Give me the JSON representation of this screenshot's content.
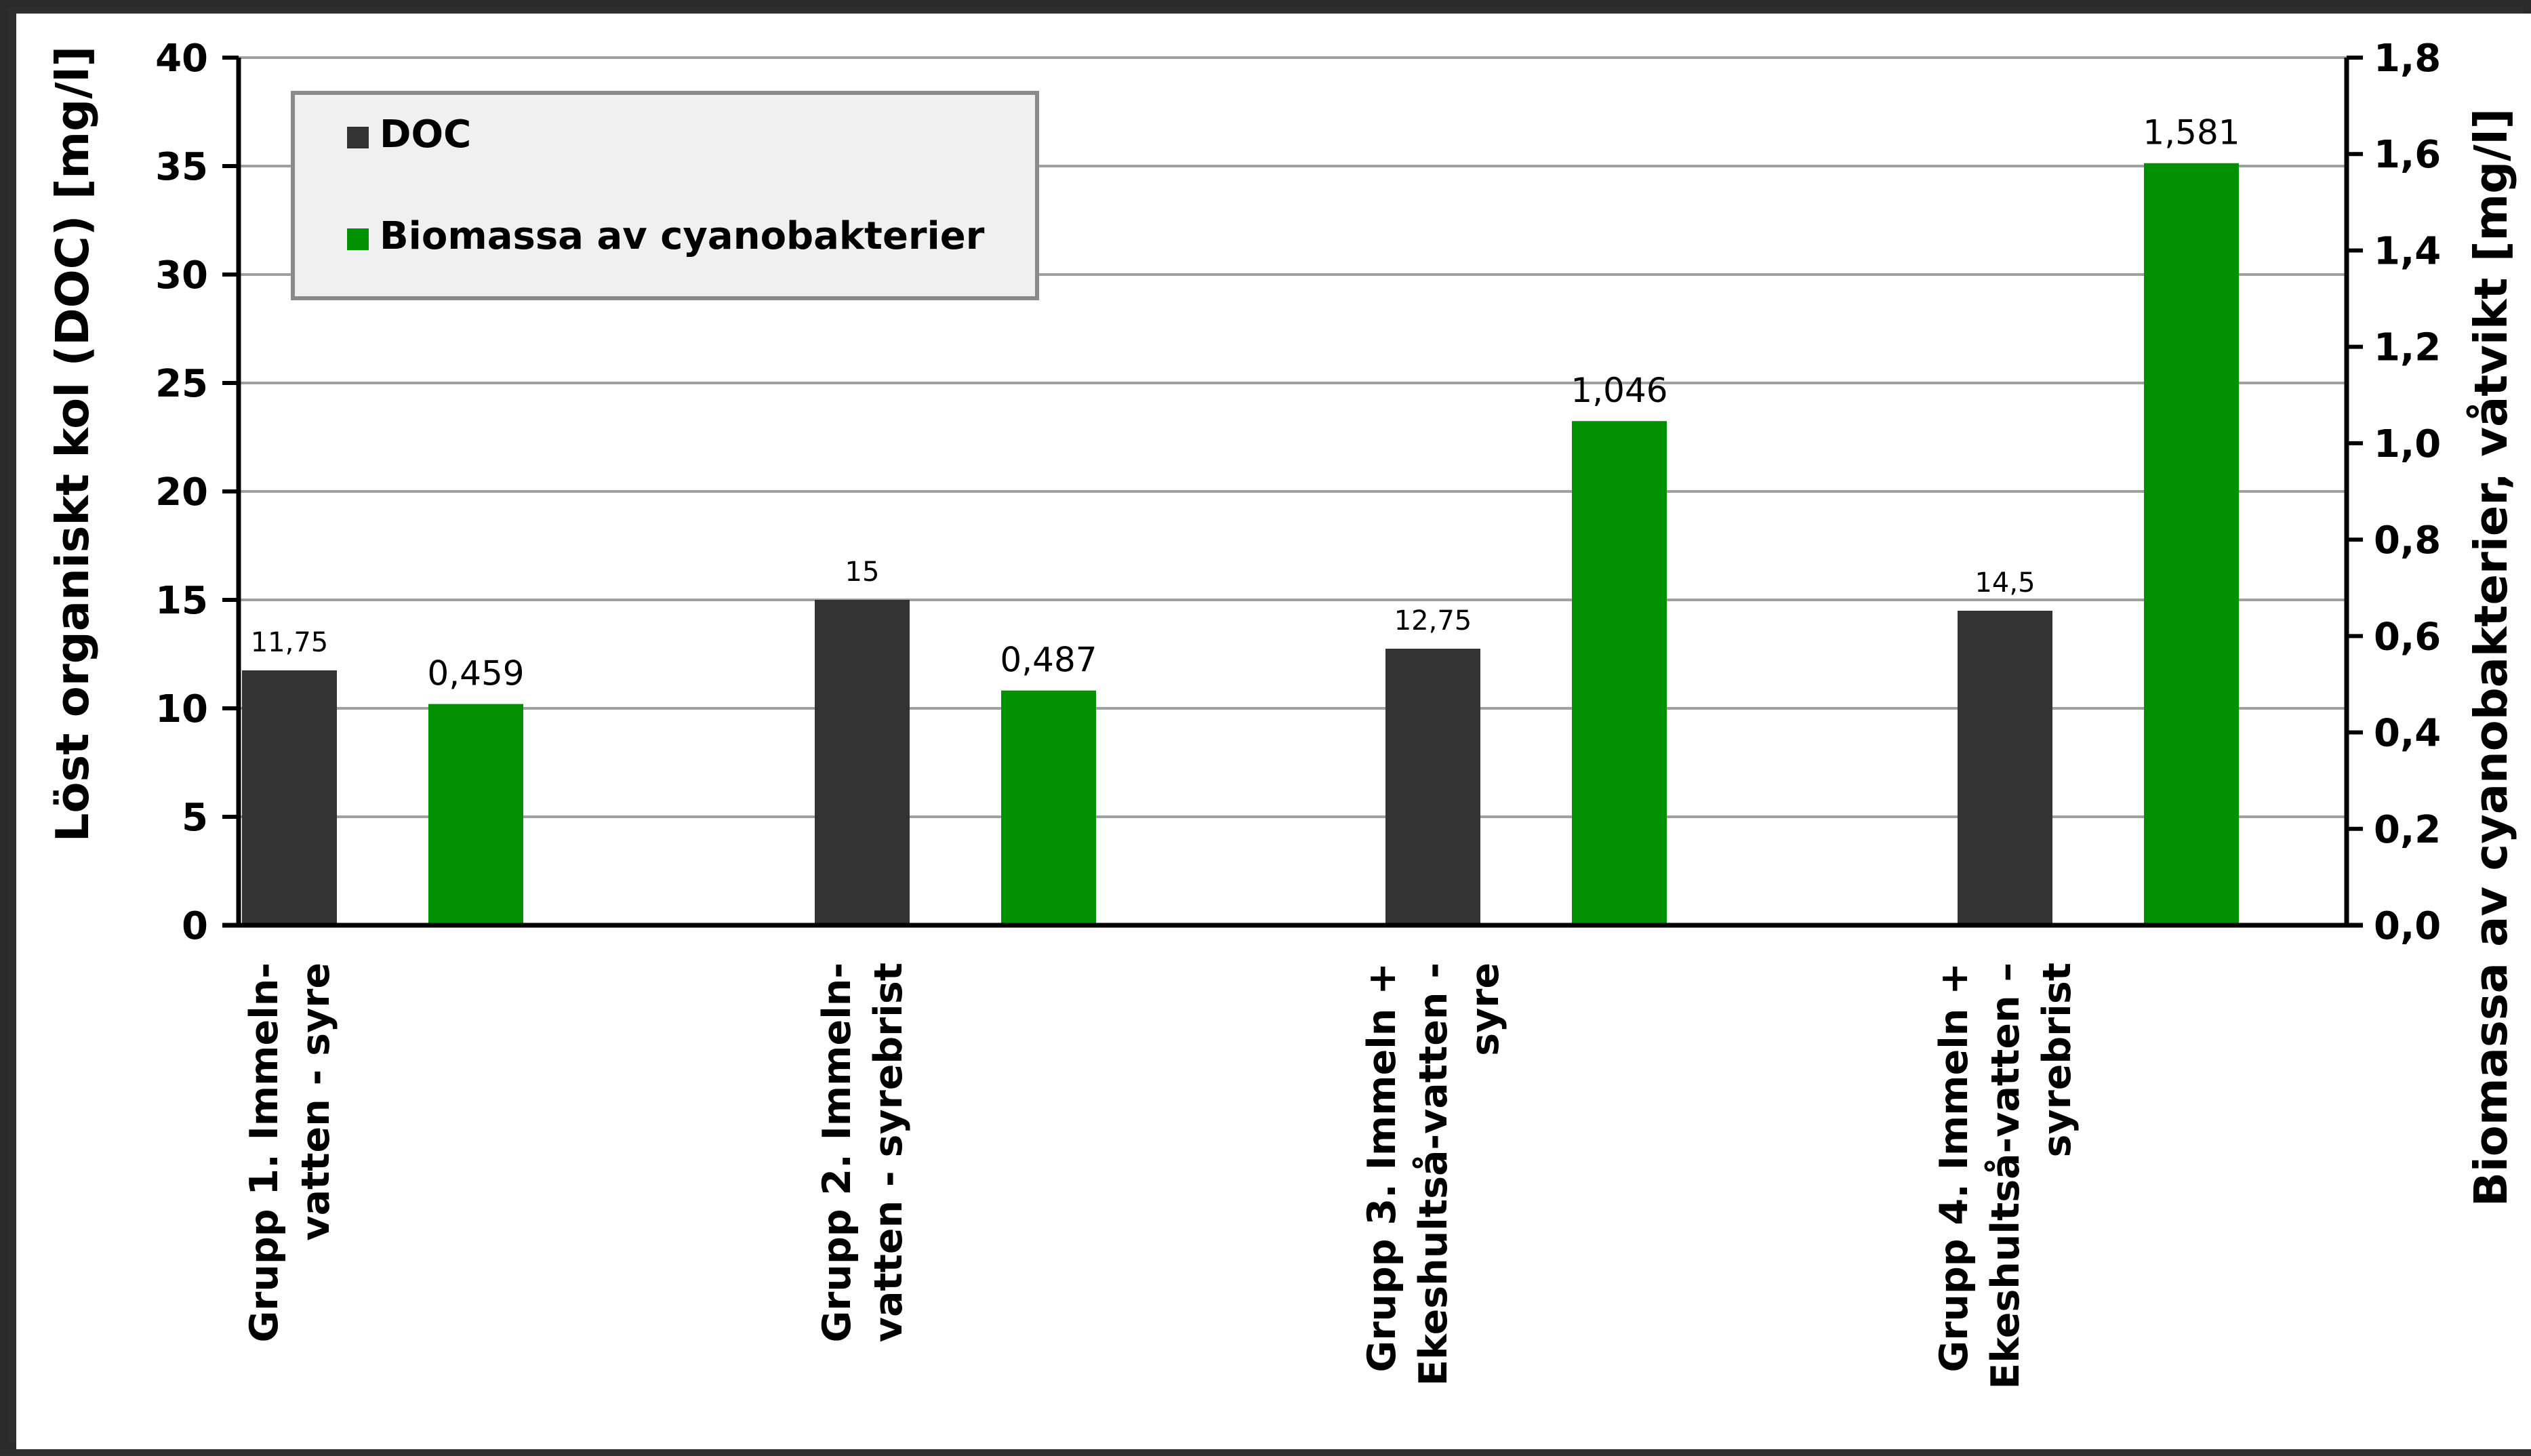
{
  "chart_data": {
    "type": "bar",
    "categories": [
      [
        "Grupp 1. Immeln-",
        "vatten - syre"
      ],
      [
        "Grupp 2. Immeln-",
        "vatten - syrebrist"
      ],
      [
        "Grupp 3. Immeln +",
        "Ekeshultså-vatten -",
        "syre"
      ],
      [
        "Grupp 4. Immeln +",
        "Ekeshultså-vatten –",
        "syrebrist"
      ]
    ],
    "series": [
      {
        "name": "DOC",
        "axis": "left",
        "color": "#333333",
        "values": [
          11.75,
          15,
          12.75,
          14.5
        ],
        "labels": [
          "11,75",
          "15",
          "12,75",
          "14,5"
        ]
      },
      {
        "name": "Biomassa av cyanobakterier",
        "axis": "right",
        "color": "#009000",
        "values": [
          0.459,
          0.487,
          1.046,
          1.581
        ],
        "labels": [
          "0,459",
          "0,487",
          "1,046",
          "1,581"
        ]
      }
    ],
    "ylabel": "Löst organiskt kol (DOC) [mg/l]",
    "y2label": "Biomassa av cyanobakterier, våtvikt [mg/l]",
    "ylim": [
      0,
      40
    ],
    "y2lim": [
      0,
      1.8
    ],
    "yticks": [
      "0",
      "5",
      "10",
      "15",
      "20",
      "25",
      "30",
      "35",
      "40"
    ],
    "y2ticks": [
      "0,0",
      "0,2",
      "0,4",
      "0,6",
      "0,8",
      "1,0",
      "1,2",
      "1,4",
      "1,6",
      "1,8"
    ],
    "grid": true,
    "legend": "top-left"
  }
}
